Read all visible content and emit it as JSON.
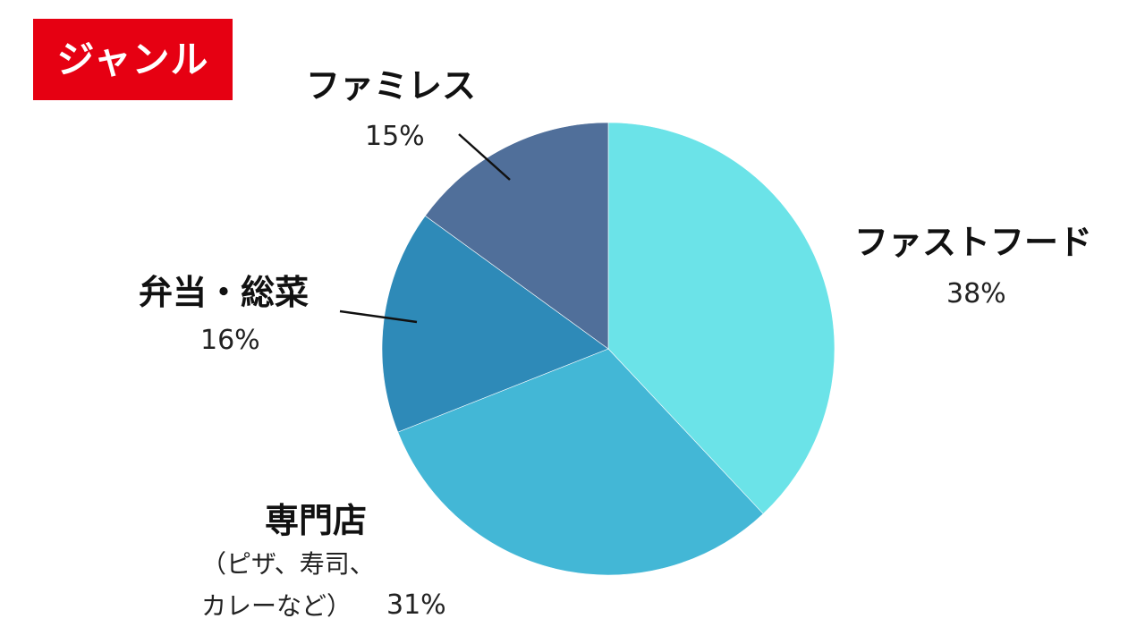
{
  "header": {
    "badge_label": "ジャンル",
    "badge_color": "#e60012"
  },
  "chart_data": {
    "type": "pie",
    "title": "",
    "unit": "%",
    "slices": [
      {
        "label": "ファストフード",
        "value": 38,
        "value_label": "38%",
        "color": "#6be3e8"
      },
      {
        "label": "専門店",
        "note_line1": "（ピザ、寿司、",
        "note_line2": "カレーなど）",
        "value": 31,
        "value_label": "31%",
        "color": "#43b7d6"
      },
      {
        "label": "弁当・総菜",
        "value": 16,
        "value_label": "16%",
        "color": "#2e8ab8"
      },
      {
        "label": "ファミレス",
        "value": 15,
        "value_label": "15%",
        "color": "#506f9a"
      }
    ],
    "start": "12-o'clock",
    "direction": "clockwise",
    "legend": "none"
  }
}
